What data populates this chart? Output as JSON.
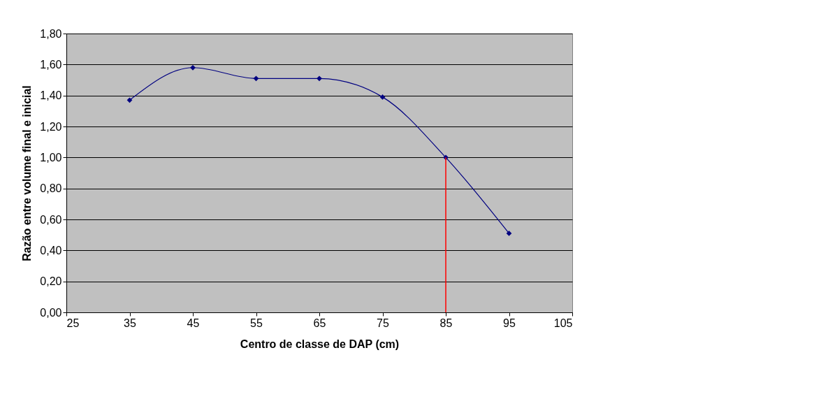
{
  "chart_data": {
    "type": "line",
    "xlabel": "Centro de classe de DAP (cm)",
    "ylabel": "Razão entre volume final e inicial",
    "x": [
      35,
      45,
      55,
      65,
      75,
      85,
      95
    ],
    "series": [
      {
        "color": "#000080",
        "values": [
          1.37,
          1.58,
          1.51,
          1.51,
          1.39,
          1.0,
          0.51
        ]
      }
    ],
    "xlim": [
      25,
      105
    ],
    "xticks": [
      25,
      35,
      45,
      55,
      65,
      75,
      85,
      95,
      105
    ],
    "ylim": [
      0,
      1.8
    ],
    "yticks": [
      {
        "value": 0,
        "label": "0,00"
      },
      {
        "value": 0.2,
        "label": "0,20"
      },
      {
        "value": 0.4,
        "label": "0,40"
      },
      {
        "value": 0.6,
        "label": "0,60"
      },
      {
        "value": 0.8,
        "label": "0,80"
      },
      {
        "value": 1.0,
        "label": "1,00"
      },
      {
        "value": 1.2,
        "label": "1,20"
      },
      {
        "value": 1.4,
        "label": "1,40"
      },
      {
        "value": 1.6,
        "label": "1,60"
      },
      {
        "value": 1.8,
        "label": "1,80"
      }
    ],
    "grid": "y",
    "marker": "diamond",
    "line_style": "solid",
    "ref_lines": [
      {
        "axis": "x",
        "value": 85,
        "color": "#ff0000",
        "line_style": "solid"
      }
    ]
  }
}
